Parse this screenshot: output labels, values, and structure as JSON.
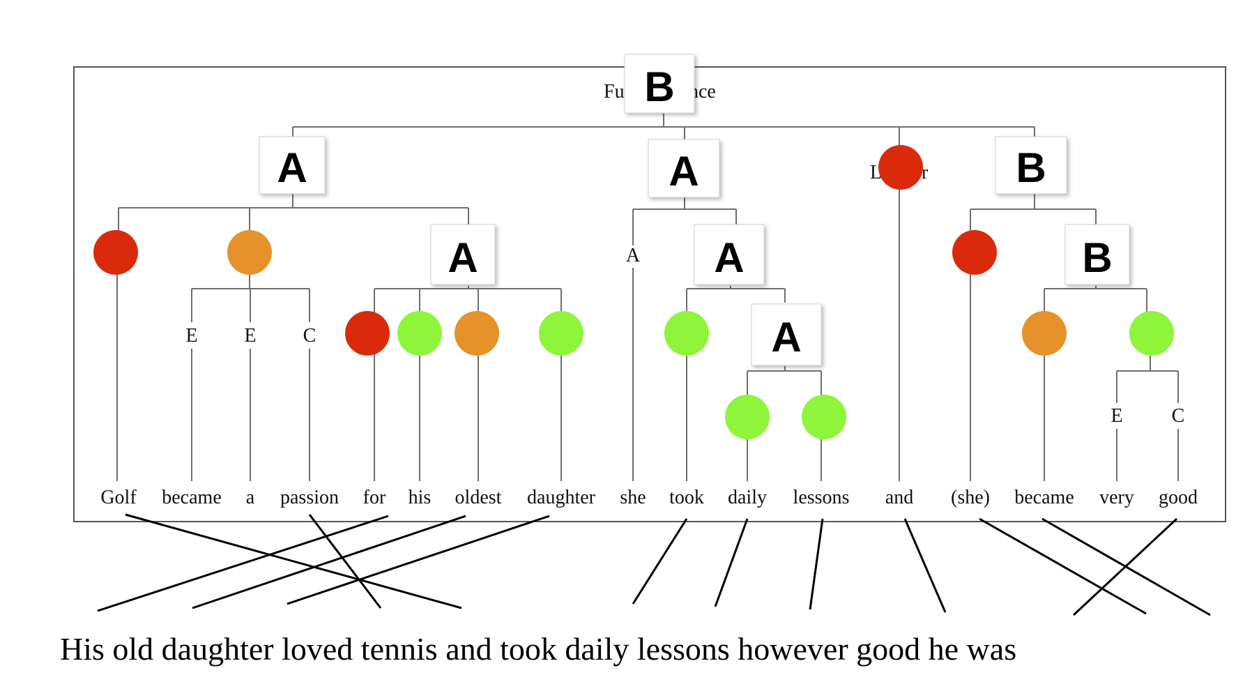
{
  "colors": {
    "red": "#d92b0b",
    "orange": "#e5922a",
    "green": "#8ef53a"
  },
  "tree": {
    "root_label_partial_left": "Fu",
    "root_label_partial_right": "nce",
    "root_badge": "B",
    "branch_labels": [
      "A",
      "A",
      "B",
      "A",
      "A",
      "A",
      "B"
    ],
    "conj_label_partial_left": "L",
    "conj_label_partial_right": "r",
    "leaf_tags": [
      "E",
      "E",
      "C",
      "A",
      "E",
      "C"
    ]
  },
  "source_words": [
    "Golf",
    "became",
    "a",
    "passion",
    "for",
    "his",
    "oldest",
    "daughter",
    "she",
    "took",
    "daily",
    "lessons",
    "and",
    "(she)",
    "became",
    "very",
    "good"
  ],
  "target_sentence": "His old daughter loved tennis and took daily lessons however good he was"
}
